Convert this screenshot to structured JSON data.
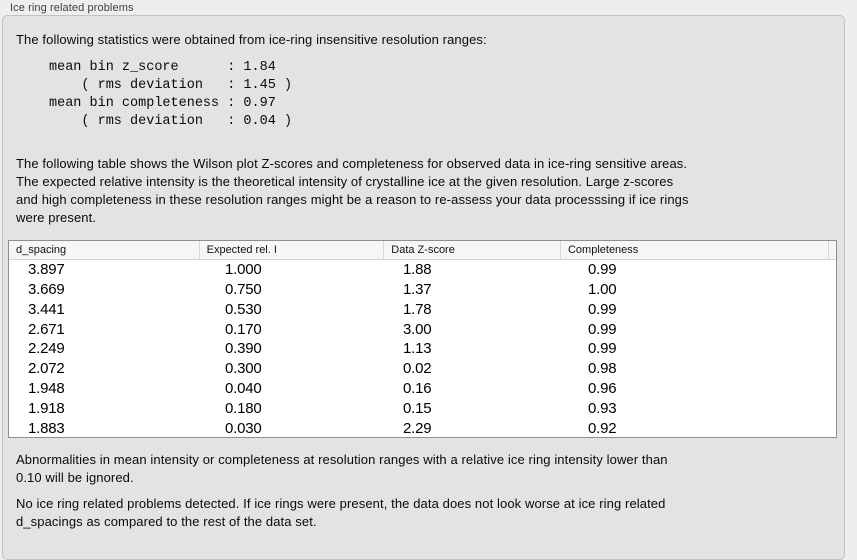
{
  "panel": {
    "label": "Ice ring related problems"
  },
  "intro_text": "The following statistics were obtained from ice-ring insensitive resolution ranges:",
  "stats_block": "mean bin z_score      : 1.84\n    ( rms deviation   : 1.45 )\nmean bin completeness : 0.97\n    ( rms deviation   : 0.04 )",
  "stats": {
    "mean_bin_z_score": "1.84",
    "z_score_rms_deviation": "1.45",
    "mean_bin_completeness": "0.97",
    "completeness_rms_deviation": "0.04"
  },
  "table_info_text": "The following table shows the Wilson plot Z-scores and completeness for observed data in ice-ring sensitive areas.\nThe expected relative intensity is the theoretical intensity of crystalline ice at the given resolution. Large z-scores\nand high completeness in these resolution ranges might be a reason to re-assess your data processsing if ice rings\nwere present.",
  "table": {
    "columns": [
      "d_spacing",
      "Expected rel. I",
      "Data Z-score",
      "Completeness"
    ],
    "rows": [
      [
        "3.897",
        "1.000",
        "1.88",
        "0.99"
      ],
      [
        "3.669",
        "0.750",
        "1.37",
        "1.00"
      ],
      [
        "3.441",
        "0.530",
        "1.78",
        "0.99"
      ],
      [
        "2.671",
        "0.170",
        "3.00",
        "0.99"
      ],
      [
        "2.249",
        "0.390",
        "1.13",
        "0.99"
      ],
      [
        "2.072",
        "0.300",
        "0.02",
        "0.98"
      ],
      [
        "1.948",
        "0.040",
        "0.16",
        "0.96"
      ],
      [
        "1.918",
        "0.180",
        "0.15",
        "0.93"
      ],
      [
        "1.883",
        "0.030",
        "2.29",
        "0.92"
      ]
    ]
  },
  "abnormalities_note": "Abnormalities in mean intensity or completeness at resolution ranges with a relative ice ring intensity lower than\n0.10 will be ignored.",
  "conclusion_text": "No ice ring related problems detected. If ice rings were present, the data does not look worse at ice ring related\nd_spacings as compared to the rest of the data set.",
  "colors": {
    "panel_bg": "#e3e3e3",
    "page_bg": "#eeeeee",
    "table_border": "#8f8f8f",
    "header_bg": "#f6f6f6",
    "text": "#0a0a0a"
  }
}
